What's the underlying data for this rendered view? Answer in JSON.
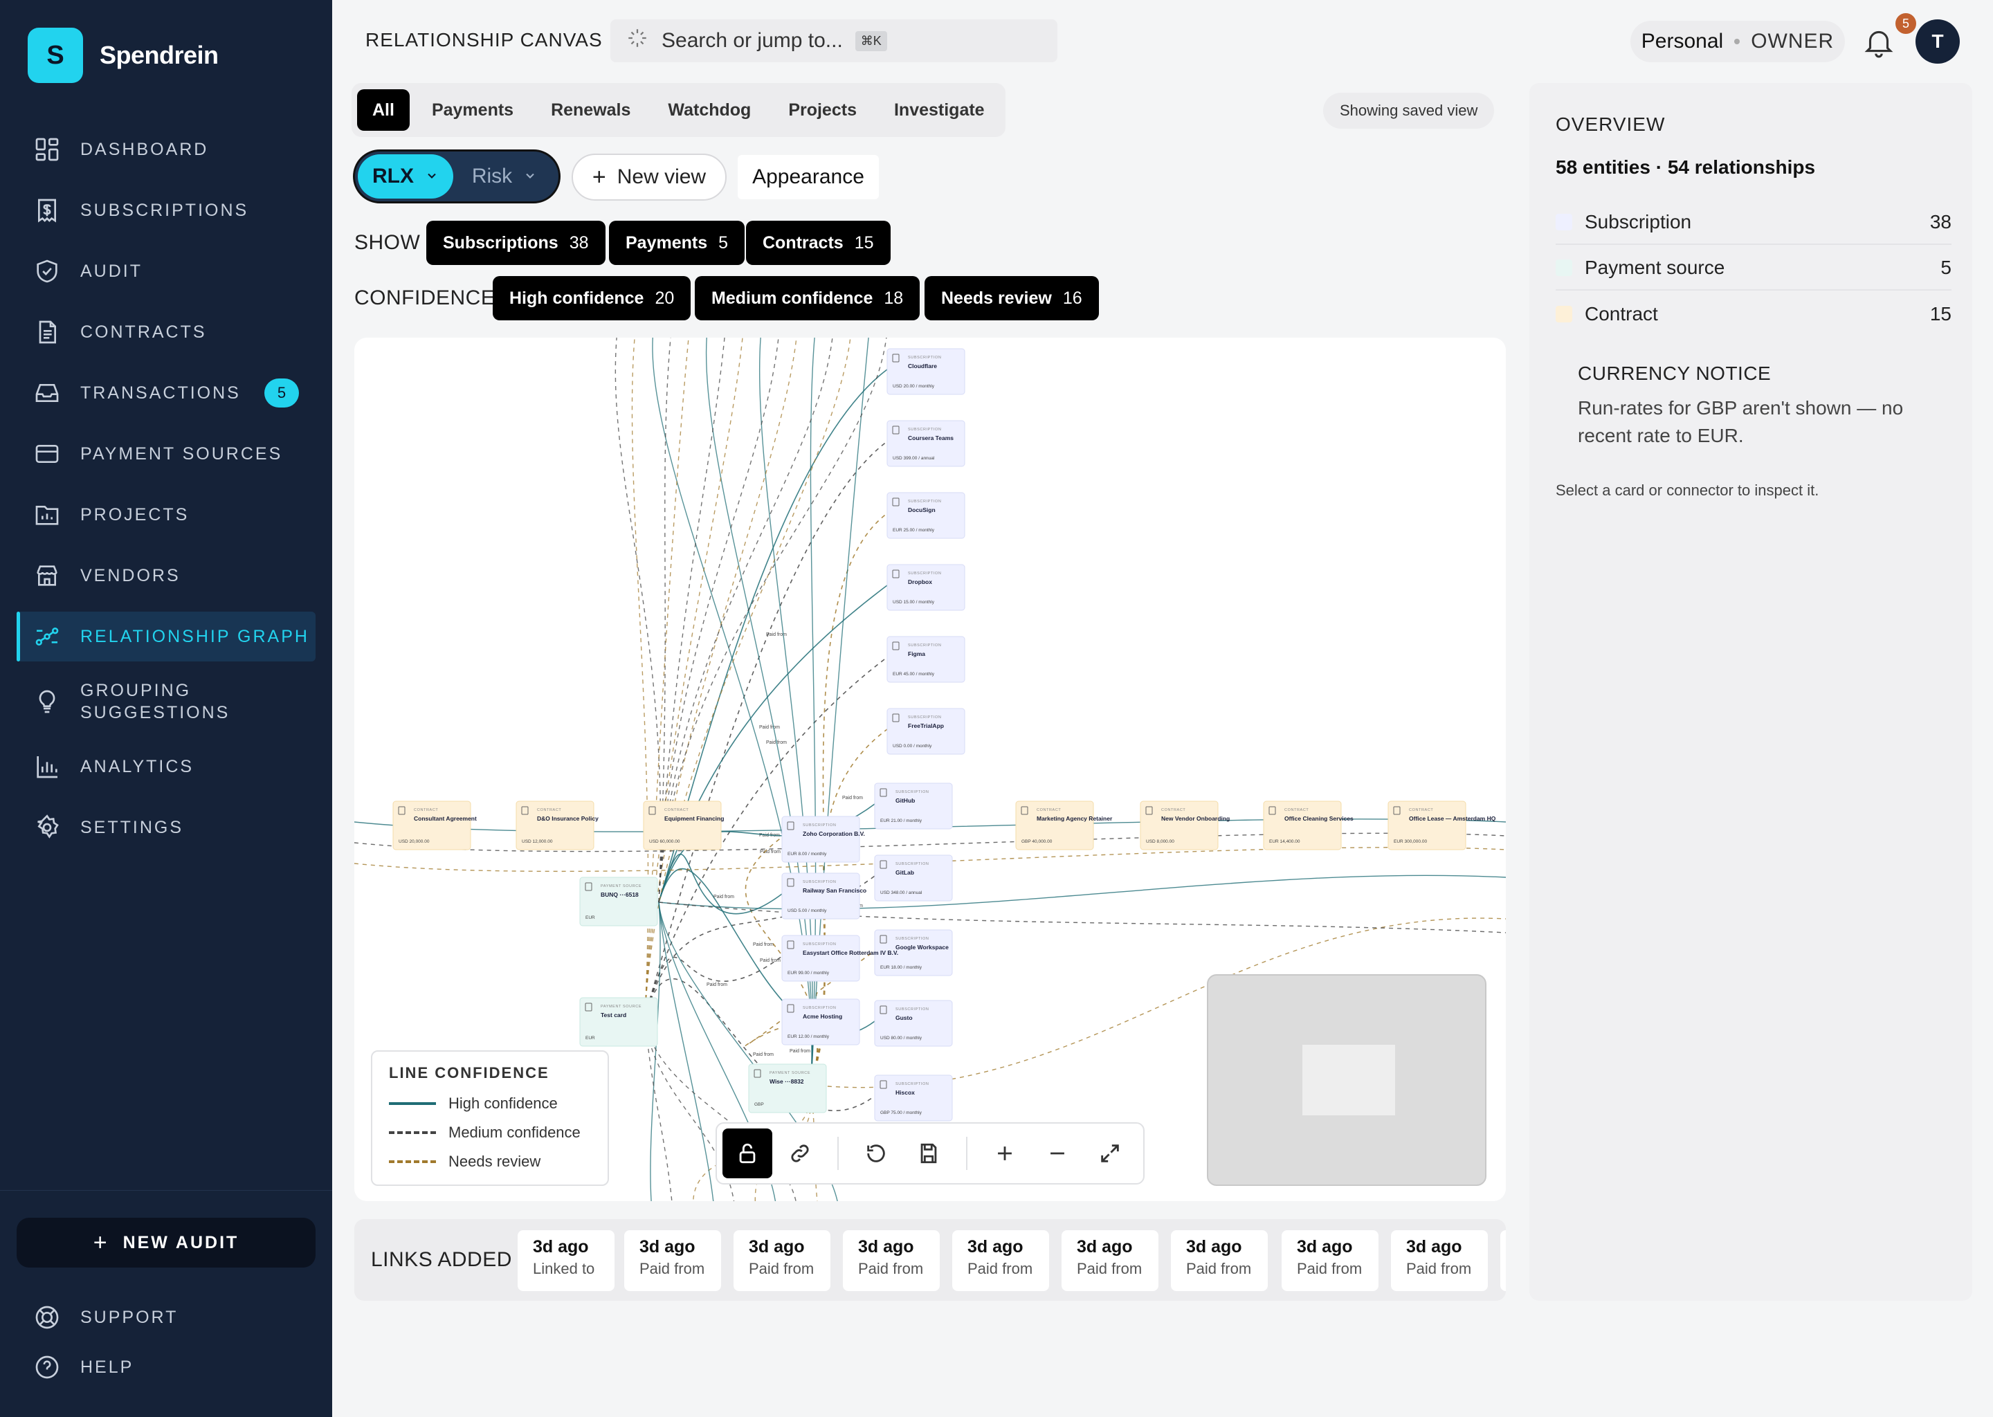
{
  "app": {
    "logo_letter": "S",
    "name": "Spendrein"
  },
  "sidebar": {
    "items": [
      {
        "label": "DASHBOARD",
        "icon": "dashboard-icon"
      },
      {
        "label": "SUBSCRIPTIONS",
        "icon": "receipt-icon"
      },
      {
        "label": "AUDIT",
        "icon": "shield-check-icon"
      },
      {
        "label": "CONTRACTS",
        "icon": "document-icon"
      },
      {
        "label": "TRANSACTIONS",
        "icon": "inbox-icon",
        "badge": "5"
      },
      {
        "label": "PAYMENT SOURCES",
        "icon": "credit-card-icon"
      },
      {
        "label": "PROJECTS",
        "icon": "folder-chart-icon"
      },
      {
        "label": "VENDORS",
        "icon": "store-icon"
      },
      {
        "label": "RELATIONSHIP GRAPH",
        "icon": "graph-icon",
        "active": true
      },
      {
        "label": "GROUPING SUGGESTIONS",
        "icon": "lightbulb-icon"
      },
      {
        "label": "ANALYTICS",
        "icon": "bar-chart-icon"
      },
      {
        "label": "SETTINGS",
        "icon": "gear-icon"
      }
    ],
    "new_audit": "NEW AUDIT",
    "support": "SUPPORT",
    "help": "HELP"
  },
  "header": {
    "title": "RELATIONSHIP CANVAS",
    "search_placeholder": "Search or jump to...",
    "shortcut": "⌘K",
    "workspace": "Personal",
    "role": "OWNER",
    "notifications": "5",
    "avatar": "T"
  },
  "filters": {
    "tabs": [
      "All",
      "Payments",
      "Renewals",
      "Watchdog",
      "Projects",
      "Investigate"
    ],
    "active_tab": "All",
    "saved_view": "Showing saved view",
    "view": {
      "active": "RLX",
      "other": "Risk",
      "new_view": "New view",
      "appearance": "Appearance"
    },
    "show": {
      "label": "SHOW",
      "chips": [
        {
          "label": "Subscriptions",
          "count": "38"
        },
        {
          "label": "Payments",
          "count": "5"
        },
        {
          "label": "Contracts",
          "count": "15"
        }
      ]
    },
    "confidence": {
      "label": "CONFIDENCE",
      "chips": [
        {
          "label": "High confidence",
          "count": "20"
        },
        {
          "label": "Medium confidence",
          "count": "18"
        },
        {
          "label": "Needs review",
          "count": "16"
        }
      ]
    }
  },
  "canvas": {
    "legend": {
      "title": "LINE CONFIDENCE",
      "items": [
        "High confidence",
        "Medium confidence",
        "Needs review"
      ]
    },
    "subscriptions": [
      {
        "name": "Cloudflare",
        "amount": "USD 20.00 / monthly"
      },
      {
        "name": "Coursera Teams",
        "amount": "USD 399.00 / annual"
      },
      {
        "name": "DocuSign",
        "amount": "EUR 25.00 / monthly"
      },
      {
        "name": "Dropbox",
        "amount": "USD 15.00 / monthly"
      },
      {
        "name": "Figma",
        "amount": "EUR 45.00 / monthly"
      },
      {
        "name": "FreeTrialApp",
        "amount": "USD 0.00 / monthly"
      },
      {
        "name": "GitHub",
        "amount": "EUR 21.00 / monthly"
      },
      {
        "name": "GitLab",
        "amount": "USD 348.00 / annual"
      },
      {
        "name": "Google Workspace",
        "amount": "EUR 18.00 / monthly"
      },
      {
        "name": "Gusto",
        "amount": "USD 80.00 / monthly"
      },
      {
        "name": "Hiscox",
        "amount": "GBP 75.00 / monthly"
      },
      {
        "name": "Zoho Corporation B.V.",
        "amount": "EUR 8.00 / monthly"
      },
      {
        "name": "Railway San Francisco",
        "amount": "USD 5.00 / monthly"
      },
      {
        "name": "Easystart Office Rotterdam IV B.V.",
        "amount": "EUR 99.00 / monthly"
      },
      {
        "name": "Acme Hosting",
        "amount": "EUR 12.00 / monthly"
      }
    ],
    "contracts": [
      {
        "name": "Consultant Agreement",
        "amount": "USD 20,000.00"
      },
      {
        "name": "D&O Insurance Policy",
        "amount": "USD 12,000.00"
      },
      {
        "name": "Equipment Financing",
        "amount": "USD 60,000.00"
      },
      {
        "name": "Marketing Agency Retainer",
        "amount": "GBP 40,000.00"
      },
      {
        "name": "New Vendor Onboarding",
        "amount": "USD 8,000.00"
      },
      {
        "name": "Office Cleaning Services",
        "amount": "EUR 14,400.00"
      },
      {
        "name": "Office Lease — Amsterdam HQ",
        "amount": "EUR 300,000.00"
      }
    ],
    "payment_sources": [
      {
        "name": "BUNQ ···6518",
        "sub": "EUR"
      },
      {
        "name": "Test card",
        "sub": "EUR"
      },
      {
        "name": "Wise ···8832",
        "sub": "GBP"
      }
    ],
    "edge_label": "Paid from"
  },
  "links_added": {
    "title": "LINKS ADDED",
    "items": [
      {
        "when": "3d ago",
        "what": "Linked to"
      },
      {
        "when": "3d ago",
        "what": "Paid from"
      },
      {
        "when": "3d ago",
        "what": "Paid from"
      },
      {
        "when": "3d ago",
        "what": "Paid from"
      },
      {
        "when": "3d ago",
        "what": "Paid from"
      },
      {
        "when": "3d ago",
        "what": "Paid from"
      },
      {
        "when": "3d ago",
        "what": "Paid from"
      },
      {
        "when": "3d ago",
        "what": "Paid from"
      },
      {
        "when": "3d ago",
        "what": "Paid from"
      }
    ]
  },
  "overview": {
    "title": "OVERVIEW",
    "summary": "58 entities · 54 relationships",
    "rows": [
      {
        "label": "Subscription",
        "count": "38",
        "color": "#eef0ff"
      },
      {
        "label": "Payment source",
        "count": "5",
        "color": "#e8f6f3"
      },
      {
        "label": "Contract",
        "count": "15",
        "color": "#fdf0d8"
      }
    ],
    "notice_title": "CURRENCY NOTICE",
    "notice_text": "Run-rates for GBP aren't shown — no recent rate to EUR.",
    "inspect_hint": "Select a card or connector to inspect it."
  },
  "colors": {
    "sidebar": "#152238",
    "accent": "#22d3ee",
    "high": "#1f6d75",
    "medium": "#444444",
    "review": "#a17a2d"
  }
}
